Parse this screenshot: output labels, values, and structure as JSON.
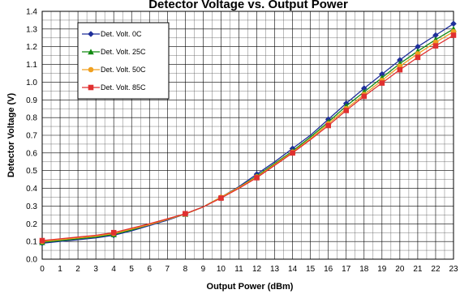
{
  "chart_data": {
    "type": "line",
    "title": "Detector Voltage vs. Output Power",
    "xlabel": "Output Power (dBm)",
    "ylabel": "Detector Voltage (V)",
    "xlim": [
      0,
      23
    ],
    "ylim": [
      0,
      1.4
    ],
    "x_ticks": [
      "0",
      "1",
      "2",
      "3",
      "4",
      "5",
      "6",
      "7",
      "8",
      "9",
      "10",
      "11",
      "12",
      "13",
      "14",
      "15",
      "16",
      "17",
      "18",
      "19",
      "20",
      "21",
      "22",
      "23"
    ],
    "y_ticks": [
      "0.0",
      "0.1",
      "0.2",
      "0.3",
      "0.4",
      "0.5",
      "0.6",
      "0.7",
      "0.8",
      "0.9",
      "1.0",
      "1.1",
      "1.2",
      "1.3",
      "1.4"
    ],
    "grid": true,
    "legend_position": "top-left",
    "x": [
      0,
      1,
      2,
      3,
      4,
      5,
      6,
      7,
      8,
      9,
      10,
      11,
      12,
      13,
      14,
      15,
      16,
      17,
      18,
      19,
      20,
      21,
      22,
      23
    ],
    "marker_x": [
      0,
      4,
      8,
      10,
      12,
      14,
      16,
      17,
      18,
      19,
      20,
      21,
      22,
      23
    ],
    "series": [
      {
        "name": "Det. Volt.  0C",
        "color": "#1f2f9a",
        "marker": "diamond",
        "values": [
          0.09,
          0.1,
          0.11,
          0.12,
          0.135,
          0.16,
          0.19,
          0.22,
          0.255,
          0.295,
          0.35,
          0.41,
          0.48,
          0.55,
          0.625,
          0.7,
          0.79,
          0.88,
          0.965,
          1.045,
          1.125,
          1.2,
          1.265,
          1.33
        ]
      },
      {
        "name": "Det. Volt. 25C",
        "color": "#118a11",
        "marker": "triangle",
        "values": [
          0.095,
          0.105,
          0.115,
          0.125,
          0.14,
          0.165,
          0.195,
          0.225,
          0.255,
          0.295,
          0.35,
          0.405,
          0.47,
          0.54,
          0.61,
          0.69,
          0.775,
          0.865,
          0.945,
          1.025,
          1.105,
          1.175,
          1.24,
          1.3
        ]
      },
      {
        "name": "Det. Volt. 50C",
        "color": "#f0a020",
        "marker": "circle",
        "values": [
          0.1,
          0.11,
          0.12,
          0.13,
          0.145,
          0.17,
          0.195,
          0.225,
          0.255,
          0.295,
          0.35,
          0.405,
          0.465,
          0.535,
          0.605,
          0.68,
          0.765,
          0.85,
          0.93,
          1.01,
          1.09,
          1.16,
          1.225,
          1.285
        ]
      },
      {
        "name": "Det. Volt. 85C",
        "color": "#e03030",
        "marker": "square",
        "values": [
          0.105,
          0.115,
          0.125,
          0.135,
          0.15,
          0.175,
          0.2,
          0.228,
          0.257,
          0.295,
          0.345,
          0.4,
          0.46,
          0.53,
          0.6,
          0.675,
          0.755,
          0.84,
          0.92,
          0.995,
          1.07,
          1.14,
          1.205,
          1.265
        ]
      }
    ]
  }
}
